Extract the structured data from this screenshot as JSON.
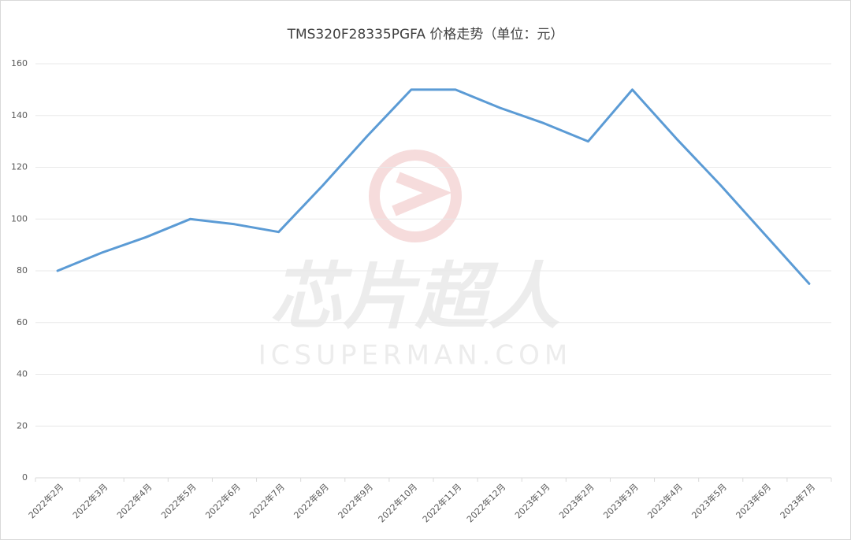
{
  "chart_data": {
    "type": "line",
    "title": "TMS320F28335PGFA 价格走势（单位：元）",
    "watermark": "芯片超人",
    "watermark_url": "ICSUPERMAN.COM",
    "categories": [
      "2022年2月",
      "2022年3月",
      "2022年4月",
      "2022年5月",
      "2022年6月",
      "2022年7月",
      "2022年8月",
      "2022年9月",
      "2022年10月",
      "2022年11月",
      "2022年12月",
      "2023年1月",
      "2023年2月",
      "2023年3月",
      "2023年4月",
      "2023年5月",
      "2023年6月",
      "2023年7月"
    ],
    "values": [
      80,
      87,
      93,
      100,
      98,
      95,
      113,
      132,
      150,
      150,
      143,
      137,
      130,
      150,
      131,
      113,
      94,
      75
    ],
    "color": "#5b9bd5",
    "ylim": [
      0,
      160
    ],
    "yticks": [
      0,
      20,
      40,
      60,
      80,
      100,
      120,
      140,
      160
    ],
    "grid": true
  }
}
